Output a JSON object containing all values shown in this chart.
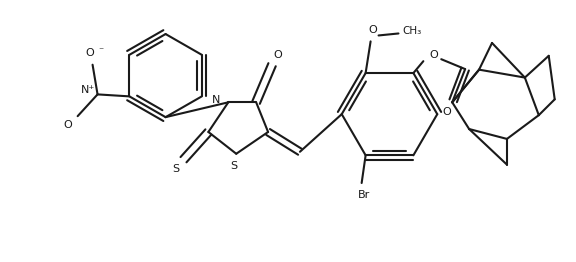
{
  "background_color": "#ffffff",
  "line_color": "#1a1a1a",
  "line_width": 1.5,
  "figsize": [
    5.76,
    2.62
  ],
  "dpi": 100,
  "xlim": [
    0,
    576
  ],
  "ylim": [
    0,
    262
  ]
}
